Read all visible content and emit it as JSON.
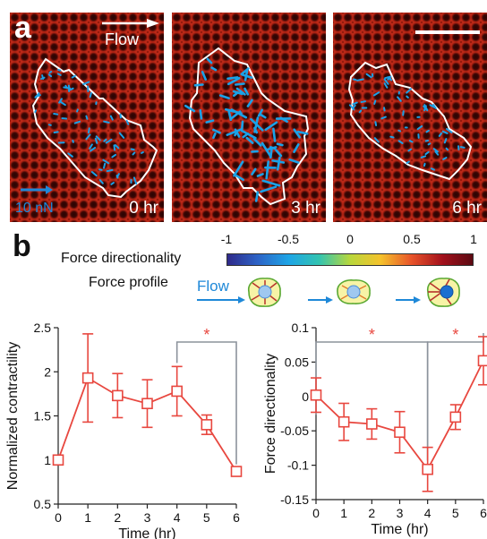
{
  "panel_a": {
    "letter": "a",
    "flow_label": "Flow",
    "scale_bar_label": "10 nN",
    "time_labels": [
      "0 hr",
      "3 hr",
      "6 hr"
    ]
  },
  "panel_b": {
    "letter": "b",
    "colorbar_title": "Force directionality",
    "colorbar_ticks": [
      "-1",
      "-0.5",
      "0",
      "0.5",
      "1"
    ],
    "force_profile_label": "Force profile",
    "flow_label": "Flow"
  },
  "colors": {
    "series": "#e8473f",
    "bracket": "#8c939c",
    "arrow": "#1aa2e8",
    "outline": "#ffffff",
    "significance": "#e8473f"
  },
  "chart_data": [
    {
      "type": "line",
      "xlabel": "Time (hr)",
      "ylabel": "Normalized contractility",
      "x": [
        0,
        1,
        2,
        3,
        4,
        5,
        6
      ],
      "y": [
        1.0,
        1.93,
        1.73,
        1.64,
        1.78,
        1.4,
        0.87
      ],
      "error": [
        0.0,
        0.5,
        0.25,
        0.27,
        0.28,
        0.11,
        0.04
      ],
      "xlim": [
        0,
        6
      ],
      "ylim": [
        0.5,
        2.5
      ],
      "xticks": [
        "0",
        "1",
        "2",
        "3",
        "4",
        "5",
        "6"
      ],
      "yticks": [
        "0.5",
        "1",
        "1.5",
        "2",
        "2.5"
      ],
      "significance": [
        {
          "from": 4,
          "to": 6,
          "label": "*"
        }
      ]
    },
    {
      "type": "line",
      "xlabel": "Time (hr)",
      "ylabel": "Force directionality",
      "x": [
        0,
        1,
        2,
        3,
        4,
        5,
        6
      ],
      "y": [
        0.002,
        -0.037,
        -0.04,
        -0.052,
        -0.106,
        -0.03,
        0.052
      ],
      "error": [
        0.025,
        0.027,
        0.022,
        0.03,
        0.032,
        0.018,
        0.035
      ],
      "xlim": [
        0,
        6
      ],
      "ylim": [
        -0.15,
        0.1
      ],
      "xticks": [
        "0",
        "1",
        "2",
        "3",
        "4",
        "5",
        "6"
      ],
      "yticks": [
        "-0.15",
        "-0.1",
        "-0.05",
        "0",
        "0.05",
        "0.1"
      ],
      "significance": [
        {
          "from": 0,
          "to": 4,
          "label": "*"
        },
        {
          "from": 4,
          "to": 6,
          "label": "*"
        }
      ]
    }
  ]
}
